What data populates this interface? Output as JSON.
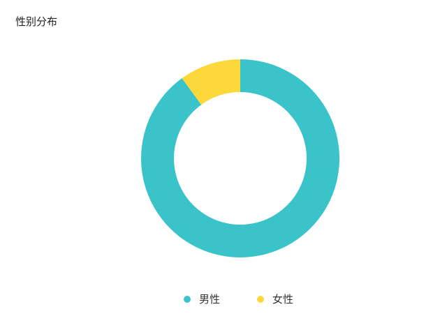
{
  "chart_data": {
    "type": "pie",
    "variant": "donut",
    "title": "性别分布",
    "categories": [
      "男性",
      "女性"
    ],
    "values": [
      90,
      10
    ],
    "unit": "percent",
    "colors": [
      "#3AC4CA",
      "#FDD83A"
    ],
    "legend": {
      "placement": "bottom",
      "entries": [
        "男性",
        "女性"
      ]
    }
  }
}
